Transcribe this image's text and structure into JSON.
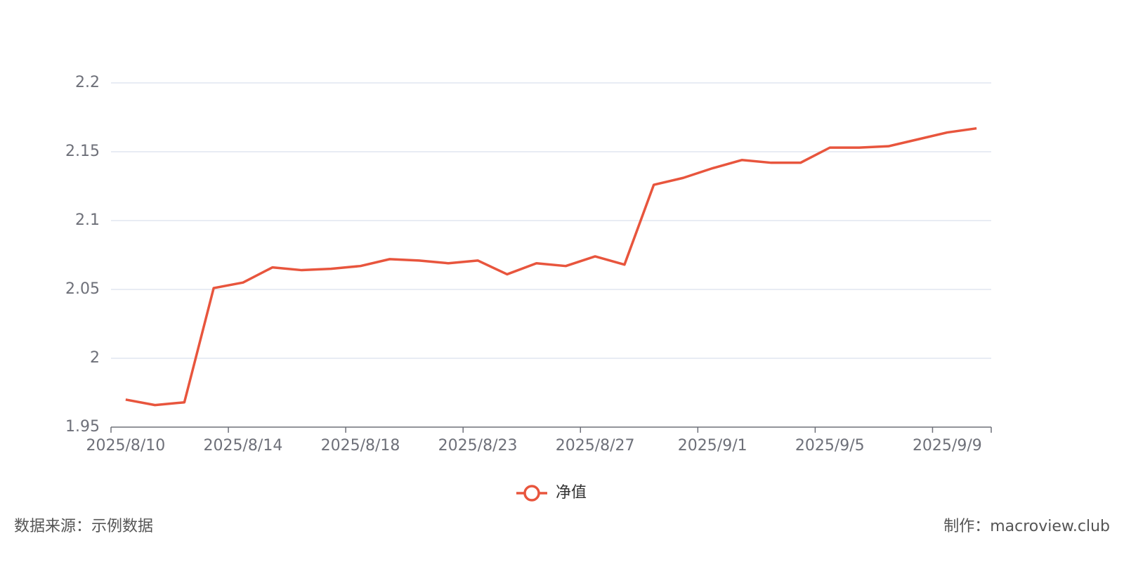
{
  "chart_data": {
    "type": "line",
    "categories": [
      "2025/8/10",
      null,
      null,
      null,
      "2025/8/14",
      null,
      null,
      null,
      "2025/8/18",
      null,
      null,
      null,
      "2025/8/23",
      null,
      null,
      null,
      "2025/8/27",
      null,
      null,
      null,
      "2025/9/1",
      null,
      null,
      null,
      "2025/9/5",
      null,
      null,
      null,
      "2025/9/9",
      null
    ],
    "series": [
      {
        "name": "净值",
        "color": "#e8553d",
        "values": [
          1.97,
          1.966,
          1.968,
          2.051,
          2.055,
          2.066,
          2.064,
          2.065,
          2.067,
          2.072,
          2.071,
          2.069,
          2.071,
          2.061,
          2.069,
          2.067,
          2.074,
          2.068,
          2.126,
          2.131,
          2.138,
          2.144,
          2.142,
          2.142,
          2.153,
          2.153,
          2.154,
          2.159,
          2.164,
          2.167
        ]
      }
    ],
    "ylim": [
      1.95,
      2.2
    ],
    "yticks": [
      1.95,
      2,
      2.05,
      2.1,
      2.15,
      2.2
    ],
    "grid": true,
    "legend": "bottom",
    "source": "数据来源：示例数据",
    "credit": "制作：macroview.club"
  }
}
